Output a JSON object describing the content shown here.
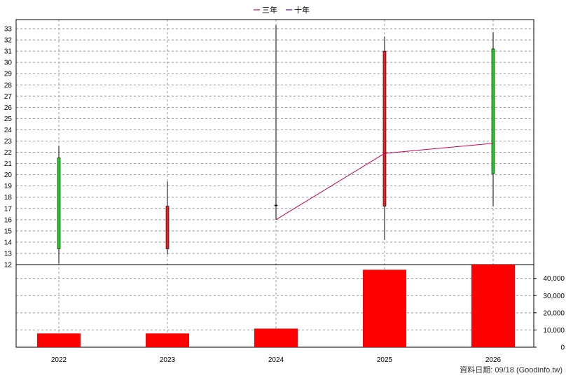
{
  "chart_data": {
    "type": "candlestick",
    "categories": [
      "2022",
      "2023",
      "2024",
      "2025",
      "2026"
    ],
    "price_axis": {
      "ylim": [
        12,
        33.5
      ],
      "ticks": [
        12,
        13,
        14,
        15,
        16,
        17,
        18,
        19,
        20,
        21,
        22,
        23,
        24,
        25,
        26,
        27,
        28,
        29,
        30,
        31,
        32,
        33
      ]
    },
    "candles": [
      {
        "x": "2022",
        "open": 13.4,
        "close": 21.5,
        "high": 22.6,
        "low": 12.1,
        "color": "#22cc22"
      },
      {
        "x": "2023",
        "open": 17.2,
        "close": 13.4,
        "high": 19.4,
        "low": 12.9,
        "color": "#ee2222"
      },
      {
        "x": "2024",
        "open": 17.3,
        "close": 17.3,
        "high": 33.3,
        "low": 16.0,
        "color": "#000000"
      },
      {
        "x": "2025",
        "open": 31.0,
        "close": 17.2,
        "high": 32.3,
        "low": 14.2,
        "color": "#ee2222"
      },
      {
        "x": "2026",
        "open": 20.1,
        "close": 31.2,
        "high": 32.7,
        "low": 17.2,
        "color": "#22cc22"
      }
    ],
    "series": [
      {
        "name": "三年",
        "color": "#cc0055",
        "values": [
          null,
          null,
          16.0,
          21.9,
          22.8
        ]
      },
      {
        "name": "十年",
        "color": "#6600cc",
        "values": [
          null,
          null,
          null,
          null,
          null
        ]
      }
    ],
    "volume_axis": {
      "ylim": [
        0,
        48000
      ],
      "ticks": [
        0,
        10000,
        20000,
        30000,
        40000
      ],
      "tick_labels": [
        "0",
        "10,000",
        "20,000",
        "30,000",
        "40,000"
      ]
    },
    "volume": [
      8000,
      8000,
      10800,
      45000,
      48000
    ],
    "volume_color": "#ff0000",
    "grid": true,
    "legend_position": "top-center"
  },
  "source_note": "資料日期: 09/18  (Goodinfo.tw)"
}
